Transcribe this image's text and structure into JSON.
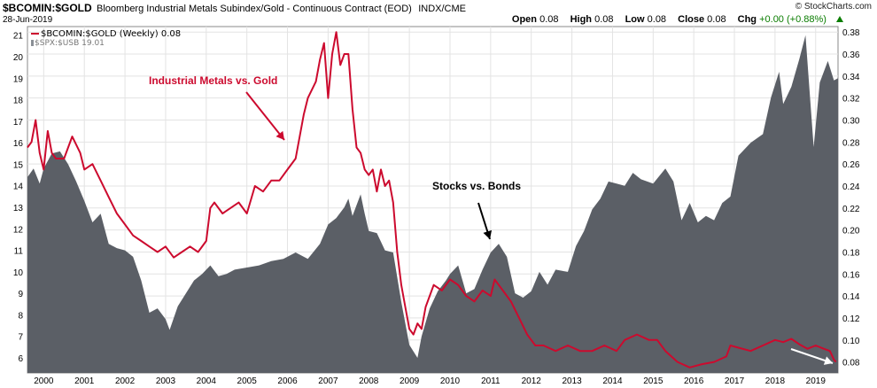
{
  "header": {
    "symbol": "$BCOMIN:$GOLD",
    "description": "Bloomberg Industrial Metals Subindex/Gold - Continuous Contract (EOD)",
    "exchange": "INDX/CME",
    "date": "28-Jun-2019",
    "brand": "© StockCharts.com",
    "open_label": "Open",
    "open": "0.08",
    "high_label": "High",
    "high": "0.08",
    "low_label": "Low",
    "low": "0.08",
    "close_label": "Close",
    "close": "0.08",
    "chg_label": "Chg",
    "chg": "+0.00 (+0.88%)"
  },
  "legend": {
    "series1": "$BCOMIN:$GOLD (Weekly) 0.08",
    "series2": "$SPX:$USB 19.01"
  },
  "annotations": {
    "metals": "Industrial Metals vs. Gold",
    "stocks": "Stocks vs. Bonds"
  },
  "colors": {
    "line": "#cc0a2e",
    "area": "#5b5f66",
    "accent_green": "#0a7d00"
  },
  "chart_data": {
    "type": "line",
    "x_ticks": [
      "2000",
      "2001",
      "2002",
      "2003",
      "2004",
      "2005",
      "2006",
      "2007",
      "2008",
      "2009",
      "2010",
      "2011",
      "2012",
      "2013",
      "2014",
      "2015",
      "2016",
      "2017",
      "2018",
      "2019"
    ],
    "x_range": [
      1999.6,
      2019.55
    ],
    "right_axis": {
      "ticks": [
        "0.08",
        "0.10",
        "0.12",
        "0.14",
        "0.16",
        "0.18",
        "0.20",
        "0.22",
        "0.24",
        "0.26",
        "0.28",
        "0.30",
        "0.32",
        "0.34",
        "0.36",
        "0.38"
      ],
      "range": [
        0.07,
        0.385
      ]
    },
    "left_axis": {
      "ticks": [
        "6",
        "7",
        "8",
        "9",
        "10",
        "11",
        "12",
        "13",
        "14",
        "15",
        "16",
        "17",
        "18",
        "19",
        "20",
        "21"
      ],
      "range": [
        5.3,
        21.4
      ]
    },
    "grid": true,
    "series": [
      {
        "name": "$BCOMIN:$GOLD (Weekly)",
        "style": "line",
        "axis": "right",
        "points": [
          [
            1999.6,
            0.275
          ],
          [
            1999.7,
            0.28
          ],
          [
            1999.8,
            0.3
          ],
          [
            1999.9,
            0.27
          ],
          [
            2000.0,
            0.255
          ],
          [
            2000.1,
            0.29
          ],
          [
            2000.2,
            0.27
          ],
          [
            2000.3,
            0.265
          ],
          [
            2000.5,
            0.265
          ],
          [
            2000.7,
            0.285
          ],
          [
            2000.9,
            0.27
          ],
          [
            2001.0,
            0.255
          ],
          [
            2001.2,
            0.26
          ],
          [
            2001.4,
            0.245
          ],
          [
            2001.6,
            0.23
          ],
          [
            2001.8,
            0.215
          ],
          [
            2002.0,
            0.205
          ],
          [
            2002.2,
            0.195
          ],
          [
            2002.4,
            0.19
          ],
          [
            2002.6,
            0.185
          ],
          [
            2002.8,
            0.18
          ],
          [
            2003.0,
            0.185
          ],
          [
            2003.2,
            0.175
          ],
          [
            2003.4,
            0.18
          ],
          [
            2003.6,
            0.185
          ],
          [
            2003.8,
            0.18
          ],
          [
            2004.0,
            0.19
          ],
          [
            2004.1,
            0.22
          ],
          [
            2004.2,
            0.225
          ],
          [
            2004.4,
            0.215
          ],
          [
            2004.6,
            0.22
          ],
          [
            2004.8,
            0.225
          ],
          [
            2005.0,
            0.215
          ],
          [
            2005.2,
            0.24
          ],
          [
            2005.4,
            0.235
          ],
          [
            2005.6,
            0.245
          ],
          [
            2005.8,
            0.245
          ],
          [
            2006.0,
            0.255
          ],
          [
            2006.2,
            0.265
          ],
          [
            2006.4,
            0.305
          ],
          [
            2006.5,
            0.32
          ],
          [
            2006.7,
            0.335
          ],
          [
            2006.8,
            0.355
          ],
          [
            2006.9,
            0.37
          ],
          [
            2007.0,
            0.32
          ],
          [
            2007.1,
            0.36
          ],
          [
            2007.2,
            0.38
          ],
          [
            2007.3,
            0.35
          ],
          [
            2007.4,
            0.36
          ],
          [
            2007.5,
            0.36
          ],
          [
            2007.6,
            0.31
          ],
          [
            2007.7,
            0.275
          ],
          [
            2007.8,
            0.27
          ],
          [
            2007.9,
            0.255
          ],
          [
            2008.0,
            0.25
          ],
          [
            2008.1,
            0.255
          ],
          [
            2008.2,
            0.235
          ],
          [
            2008.3,
            0.255
          ],
          [
            2008.4,
            0.24
          ],
          [
            2008.5,
            0.245
          ],
          [
            2008.6,
            0.225
          ],
          [
            2008.7,
            0.18
          ],
          [
            2008.8,
            0.15
          ],
          [
            2008.9,
            0.13
          ],
          [
            2009.0,
            0.11
          ],
          [
            2009.1,
            0.105
          ],
          [
            2009.2,
            0.115
          ],
          [
            2009.3,
            0.11
          ],
          [
            2009.4,
            0.13
          ],
          [
            2009.6,
            0.15
          ],
          [
            2009.8,
            0.145
          ],
          [
            2010.0,
            0.155
          ],
          [
            2010.2,
            0.15
          ],
          [
            2010.4,
            0.14
          ],
          [
            2010.6,
            0.135
          ],
          [
            2010.8,
            0.145
          ],
          [
            2011.0,
            0.14
          ],
          [
            2011.1,
            0.155
          ],
          [
            2011.3,
            0.145
          ],
          [
            2011.5,
            0.135
          ],
          [
            2011.7,
            0.12
          ],
          [
            2011.9,
            0.105
          ],
          [
            2012.1,
            0.095
          ],
          [
            2012.3,
            0.095
          ],
          [
            2012.6,
            0.09
          ],
          [
            2012.9,
            0.095
          ],
          [
            2013.2,
            0.09
          ],
          [
            2013.5,
            0.09
          ],
          [
            2013.8,
            0.095
          ],
          [
            2014.1,
            0.09
          ],
          [
            2014.3,
            0.1
          ],
          [
            2014.6,
            0.105
          ],
          [
            2014.9,
            0.1
          ],
          [
            2015.1,
            0.1
          ],
          [
            2015.3,
            0.09
          ],
          [
            2015.6,
            0.08
          ],
          [
            2015.9,
            0.075
          ],
          [
            2016.2,
            0.078
          ],
          [
            2016.5,
            0.08
          ],
          [
            2016.8,
            0.085
          ],
          [
            2016.9,
            0.095
          ],
          [
            2017.1,
            0.093
          ],
          [
            2017.4,
            0.09
          ],
          [
            2017.7,
            0.095
          ],
          [
            2018.0,
            0.1
          ],
          [
            2018.2,
            0.098
          ],
          [
            2018.4,
            0.101
          ],
          [
            2018.6,
            0.096
          ],
          [
            2018.8,
            0.092
          ],
          [
            2019.0,
            0.095
          ],
          [
            2019.2,
            0.092
          ],
          [
            2019.35,
            0.09
          ],
          [
            2019.45,
            0.082
          ],
          [
            2019.5,
            0.08
          ]
        ]
      },
      {
        "name": "$SPX:$USB",
        "style": "area",
        "axis": "left",
        "points": [
          [
            1999.6,
            14.4
          ],
          [
            1999.75,
            14.8
          ],
          [
            1999.9,
            14.1
          ],
          [
            2000.0,
            14.8
          ],
          [
            2000.2,
            15.5
          ],
          [
            2000.4,
            15.6
          ],
          [
            2000.6,
            15.0
          ],
          [
            2000.8,
            14.2
          ],
          [
            2001.0,
            13.3
          ],
          [
            2001.2,
            12.3
          ],
          [
            2001.4,
            12.7
          ],
          [
            2001.6,
            11.3
          ],
          [
            2001.8,
            11.1
          ],
          [
            2002.0,
            11.0
          ],
          [
            2002.2,
            10.7
          ],
          [
            2002.4,
            9.6
          ],
          [
            2002.6,
            8.1
          ],
          [
            2002.8,
            8.3
          ],
          [
            2003.0,
            7.8
          ],
          [
            2003.1,
            7.3
          ],
          [
            2003.3,
            8.4
          ],
          [
            2003.5,
            9.0
          ],
          [
            2003.7,
            9.6
          ],
          [
            2003.9,
            9.9
          ],
          [
            2004.1,
            10.3
          ],
          [
            2004.3,
            9.8
          ],
          [
            2004.5,
            9.9
          ],
          [
            2004.7,
            10.1
          ],
          [
            2005.0,
            10.2
          ],
          [
            2005.3,
            10.3
          ],
          [
            2005.6,
            10.5
          ],
          [
            2005.9,
            10.6
          ],
          [
            2006.2,
            10.9
          ],
          [
            2006.5,
            10.6
          ],
          [
            2006.8,
            11.3
          ],
          [
            2007.0,
            12.2
          ],
          [
            2007.2,
            12.5
          ],
          [
            2007.4,
            13.0
          ],
          [
            2007.5,
            13.4
          ],
          [
            2007.6,
            12.6
          ],
          [
            2007.8,
            13.6
          ],
          [
            2007.9,
            12.7
          ],
          [
            2008.0,
            11.9
          ],
          [
            2008.2,
            11.8
          ],
          [
            2008.4,
            11.0
          ],
          [
            2008.6,
            10.9
          ],
          [
            2008.8,
            8.6
          ],
          [
            2009.0,
            6.6
          ],
          [
            2009.2,
            6.0
          ],
          [
            2009.3,
            7.0
          ],
          [
            2009.5,
            8.3
          ],
          [
            2009.7,
            9.1
          ],
          [
            2009.9,
            9.6
          ],
          [
            2010.0,
            9.9
          ],
          [
            2010.2,
            10.3
          ],
          [
            2010.4,
            9.0
          ],
          [
            2010.6,
            9.2
          ],
          [
            2010.8,
            10.1
          ],
          [
            2011.0,
            10.9
          ],
          [
            2011.2,
            11.3
          ],
          [
            2011.4,
            10.7
          ],
          [
            2011.6,
            9.0
          ],
          [
            2011.8,
            8.8
          ],
          [
            2012.0,
            9.1
          ],
          [
            2012.2,
            10.0
          ],
          [
            2012.4,
            9.4
          ],
          [
            2012.6,
            10.1
          ],
          [
            2012.9,
            10.0
          ],
          [
            2013.1,
            11.2
          ],
          [
            2013.3,
            11.9
          ],
          [
            2013.5,
            12.9
          ],
          [
            2013.7,
            13.4
          ],
          [
            2013.9,
            14.2
          ],
          [
            2014.1,
            14.1
          ],
          [
            2014.3,
            14.0
          ],
          [
            2014.5,
            14.6
          ],
          [
            2014.7,
            14.3
          ],
          [
            2015.0,
            14.1
          ],
          [
            2015.3,
            14.8
          ],
          [
            2015.5,
            14.2
          ],
          [
            2015.7,
            12.4
          ],
          [
            2015.9,
            13.2
          ],
          [
            2016.1,
            12.3
          ],
          [
            2016.3,
            12.6
          ],
          [
            2016.5,
            12.4
          ],
          [
            2016.7,
            13.2
          ],
          [
            2016.9,
            13.5
          ],
          [
            2017.1,
            15.4
          ],
          [
            2017.4,
            16.0
          ],
          [
            2017.7,
            16.4
          ],
          [
            2017.9,
            18.1
          ],
          [
            2018.1,
            19.3
          ],
          [
            2018.2,
            17.8
          ],
          [
            2018.4,
            18.6
          ],
          [
            2018.6,
            19.9
          ],
          [
            2018.75,
            21.0
          ],
          [
            2018.85,
            18.4
          ],
          [
            2018.95,
            15.8
          ],
          [
            2019.1,
            18.8
          ],
          [
            2019.3,
            19.8
          ],
          [
            2019.45,
            18.9
          ],
          [
            2019.55,
            19.0
          ]
        ]
      }
    ]
  }
}
